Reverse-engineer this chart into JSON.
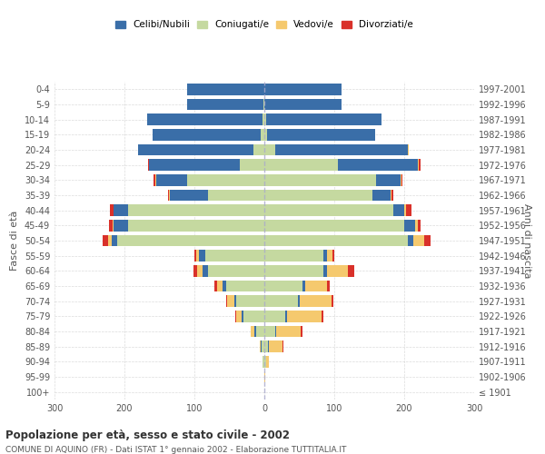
{
  "age_groups": [
    "100+",
    "95-99",
    "90-94",
    "85-89",
    "80-84",
    "75-79",
    "70-74",
    "65-69",
    "60-64",
    "55-59",
    "50-54",
    "45-49",
    "40-44",
    "35-39",
    "30-34",
    "25-29",
    "20-24",
    "15-19",
    "10-14",
    "5-9",
    "0-4"
  ],
  "birth_years": [
    "≤ 1901",
    "1902-1906",
    "1907-1911",
    "1912-1916",
    "1917-1921",
    "1922-1926",
    "1927-1931",
    "1932-1936",
    "1937-1941",
    "1942-1946",
    "1947-1951",
    "1952-1956",
    "1957-1961",
    "1962-1966",
    "1967-1971",
    "1972-1976",
    "1977-1981",
    "1982-1986",
    "1987-1991",
    "1992-1996",
    "1997-2001"
  ],
  "male": {
    "celibe": [
      0,
      0,
      0,
      1,
      2,
      2,
      3,
      5,
      8,
      8,
      8,
      20,
      20,
      55,
      45,
      130,
      165,
      155,
      165,
      110,
      110
    ],
    "coniugato": [
      0,
      0,
      2,
      4,
      12,
      30,
      40,
      55,
      80,
      85,
      210,
      195,
      195,
      80,
      110,
      35,
      15,
      5,
      2,
      1,
      0
    ],
    "vedovo": [
      0,
      0,
      1,
      2,
      5,
      8,
      10,
      8,
      8,
      5,
      5,
      2,
      1,
      1,
      1,
      0,
      0,
      0,
      0,
      0,
      0
    ],
    "divorziato": [
      0,
      0,
      0,
      0,
      0,
      1,
      2,
      3,
      5,
      2,
      8,
      5,
      5,
      2,
      2,
      1,
      1,
      0,
      0,
      0,
      0
    ]
  },
  "female": {
    "nubile": [
      0,
      0,
      0,
      1,
      2,
      2,
      3,
      4,
      5,
      5,
      8,
      15,
      15,
      25,
      35,
      115,
      190,
      155,
      165,
      110,
      110
    ],
    "coniugata": [
      0,
      0,
      2,
      5,
      15,
      30,
      48,
      55,
      85,
      85,
      205,
      200,
      185,
      155,
      160,
      105,
      15,
      4,
      2,
      0,
      0
    ],
    "vedova": [
      0,
      1,
      5,
      20,
      35,
      50,
      45,
      30,
      30,
      8,
      15,
      5,
      2,
      2,
      1,
      1,
      1,
      0,
      0,
      0,
      0
    ],
    "divorziata": [
      0,
      0,
      0,
      1,
      3,
      2,
      3,
      5,
      8,
      2,
      10,
      4,
      8,
      3,
      2,
      2,
      1,
      0,
      0,
      0,
      0
    ]
  },
  "colors": {
    "celibe": "#3a6ea8",
    "coniugato": "#c5d9a0",
    "vedovo": "#f5c96e",
    "divorziato": "#d9312a"
  },
  "legend_labels": [
    "Celibi/Nubili",
    "Coniugati/e",
    "Vedovi/e",
    "Divorziati/e"
  ],
  "title": "Popolazione per età, sesso e stato civile - 2002",
  "subtitle": "COMUNE DI AQUINO (FR) - Dati ISTAT 1° gennaio 2002 - Elaborazione TUTTITALIA.IT",
  "ylabel_left": "Fasce di età",
  "ylabel_right": "Anni di nascita",
  "xlim": 300,
  "background_color": "#ffffff",
  "grid_color": "#cccccc"
}
